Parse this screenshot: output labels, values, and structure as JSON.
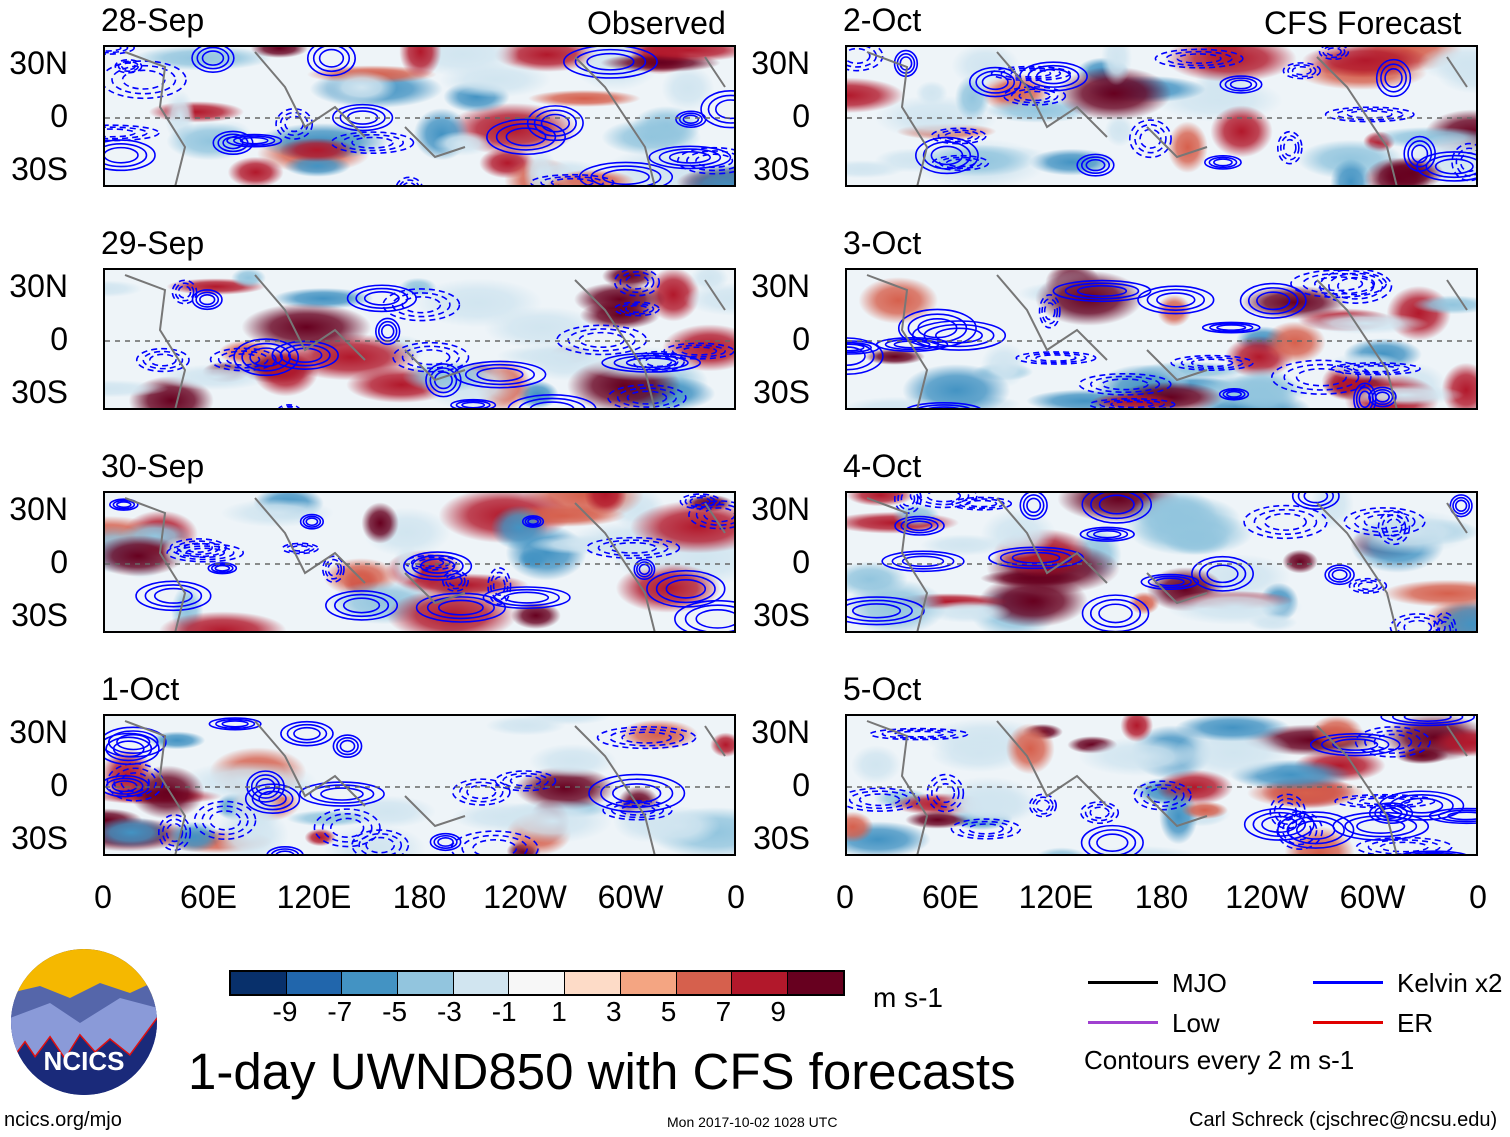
{
  "headers": {
    "observed": "Observed",
    "forecast": "CFS Forecast"
  },
  "panels": {
    "observed": [
      "28-Sep",
      "29-Sep",
      "30-Sep",
      "1-Oct"
    ],
    "forecast": [
      "2-Oct",
      "3-Oct",
      "4-Oct",
      "5-Oct"
    ]
  },
  "y_ticks": [
    "30N",
    "0",
    "30S"
  ],
  "x_ticks": [
    "0",
    "60E",
    "120E",
    "180",
    "120W",
    "60W",
    "0"
  ],
  "colorbar": {
    "colors": [
      "#08306b",
      "#2166ac",
      "#4393c3",
      "#92c5de",
      "#d1e5f0",
      "#f7f7f7",
      "#fddbc7",
      "#f4a582",
      "#d6604d",
      "#b2182b",
      "#67001f"
    ],
    "labels": [
      "-9",
      "-7",
      "-5",
      "-3",
      "-1",
      "1",
      "3",
      "5",
      "7",
      "9"
    ],
    "units": "m s-1"
  },
  "legend": {
    "items": [
      {
        "label": "MJO",
        "color": "#000000"
      },
      {
        "label": "Kelvin x2",
        "color": "#0000ff"
      },
      {
        "label": "Low",
        "color": "#a040d0"
      },
      {
        "label": "ER",
        "color": "#e00000"
      }
    ],
    "note": "Contours every 2 m s-1"
  },
  "title": "1-day UWND850 with CFS forecasts",
  "logo_text": "NCICS",
  "footer": {
    "left": "ncics.org/mjo",
    "center": "Mon 2017-10-02 1028 UTC",
    "right": "Carl Schreck (cjschrec@ncsu.edu)"
  }
}
